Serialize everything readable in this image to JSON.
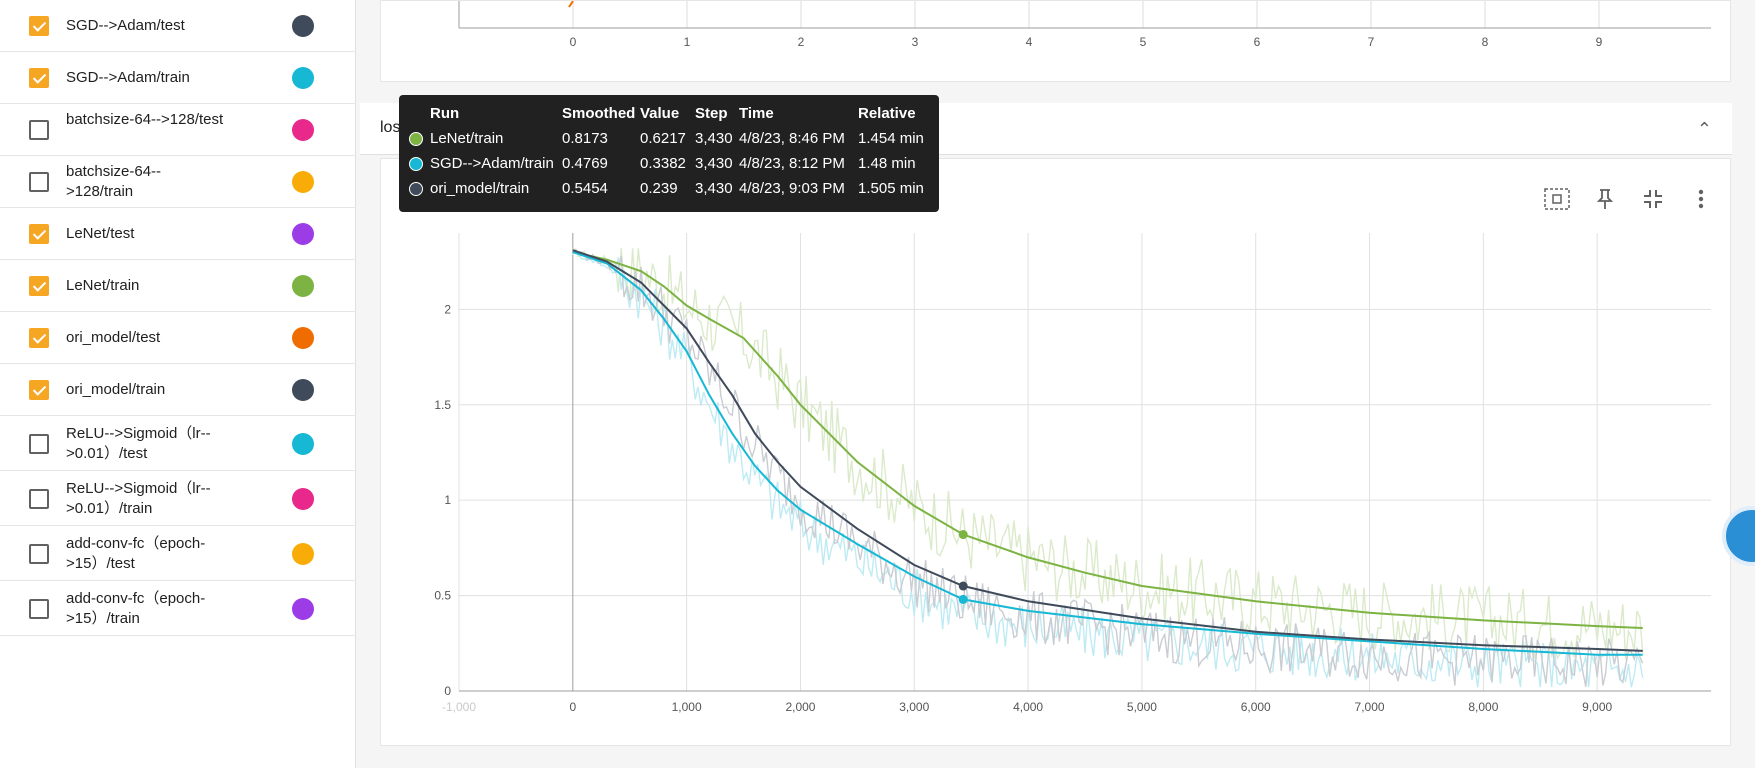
{
  "runs": [
    {
      "label": "SGD-->Adam/test",
      "checked": true,
      "color": "#3f4a5a"
    },
    {
      "label": "SGD-->Adam/train",
      "checked": true,
      "color": "#16b8d4"
    },
    {
      "label": "batchsize-64-->128/test",
      "checked": false,
      "color": "#e8288a"
    },
    {
      "label": "batchsize-64-->128/train",
      "checked": false,
      "color": "#f9ac07"
    },
    {
      "label": "LeNet/test",
      "checked": true,
      "color": "#9b3ce6"
    },
    {
      "label": "LeNet/train",
      "checked": true,
      "color": "#7cb342"
    },
    {
      "label": "ori_model/test",
      "checked": true,
      "color": "#ef6c00"
    },
    {
      "label": "ori_model/train",
      "checked": true,
      "color": "#3f4a5a"
    },
    {
      "label": "ReLU-->Sigmoid（lr-->0.01）/test",
      "checked": false,
      "color": "#16b8d4"
    },
    {
      "label": "ReLU-->Sigmoid（lr-->0.01）/train",
      "checked": false,
      "color": "#e8288a"
    },
    {
      "label": "add-conv-fc（epoch->15）/test",
      "checked": false,
      "color": "#f9ac07"
    },
    {
      "label": "add-conv-fc（epoch->15）/train",
      "checked": false,
      "color": "#9b3ce6"
    }
  ],
  "group": {
    "title": "loss"
  },
  "top_chart": {
    "ticks": [
      "0",
      "1",
      "2",
      "3",
      "4",
      "5",
      "6",
      "7",
      "8",
      "9"
    ]
  },
  "chart_data": {
    "type": "line",
    "title": "loss",
    "xlabel": "",
    "ylabel": "",
    "xlim": [
      -1000,
      10000
    ],
    "ylim": [
      0,
      2.4
    ],
    "x_ticks": [
      "-1,000",
      "0",
      "1,000",
      "2,000",
      "3,000",
      "4,000",
      "5,000",
      "6,000",
      "7,000",
      "8,000",
      "9,000"
    ],
    "y_ticks": [
      "0",
      "0.5",
      "1",
      "1.5",
      "2"
    ],
    "grid": true,
    "series": [
      {
        "name": "LeNet/train",
        "color": "#7cb342",
        "x": [
          0,
          300,
          600,
          800,
          1000,
          1200,
          1500,
          1800,
          2000,
          2500,
          3000,
          3430,
          4000,
          4500,
          5000,
          6000,
          7000,
          8000,
          9000,
          9400
        ],
        "y": [
          2.3,
          2.26,
          2.2,
          2.12,
          2.02,
          1.95,
          1.85,
          1.65,
          1.5,
          1.2,
          0.97,
          0.82,
          0.7,
          0.62,
          0.55,
          0.47,
          0.41,
          0.37,
          0.34,
          0.33
        ]
      },
      {
        "name": "SGD-->Adam/train",
        "color": "#16b8d4",
        "x": [
          0,
          300,
          600,
          800,
          1000,
          1200,
          1400,
          1600,
          1800,
          2000,
          2500,
          3000,
          3430,
          4000,
          5000,
          6000,
          7000,
          8000,
          9000,
          9400
        ],
        "y": [
          2.3,
          2.24,
          2.1,
          1.95,
          1.78,
          1.55,
          1.35,
          1.18,
          1.05,
          0.95,
          0.77,
          0.6,
          0.48,
          0.42,
          0.35,
          0.3,
          0.26,
          0.22,
          0.19,
          0.19
        ]
      },
      {
        "name": "ori_model/train",
        "color": "#3f4a5a",
        "x": [
          0,
          300,
          600,
          800,
          1000,
          1200,
          1400,
          1600,
          1800,
          2000,
          2500,
          3000,
          3430,
          4000,
          5000,
          6000,
          7000,
          8000,
          9000,
          9400
        ],
        "y": [
          2.31,
          2.25,
          2.14,
          2.02,
          1.9,
          1.72,
          1.55,
          1.35,
          1.2,
          1.07,
          0.85,
          0.66,
          0.55,
          0.47,
          0.38,
          0.31,
          0.27,
          0.24,
          0.22,
          0.21
        ]
      }
    ]
  },
  "tooltip": {
    "headers": {
      "run": "Run",
      "smoothed": "Smoothed",
      "value": "Value",
      "step": "Step",
      "time": "Time",
      "relative": "Relative"
    },
    "rows": [
      {
        "run": "LeNet/train",
        "smoothed": "0.8173",
        "value": "0.6217",
        "step": "3,430",
        "time": "4/8/23, 8:46 PM",
        "relative": "1.454 min",
        "color": "#7cb342"
      },
      {
        "run": "SGD-->Adam/train",
        "smoothed": "0.4769",
        "value": "0.3382",
        "step": "3,430",
        "time": "4/8/23, 8:12 PM",
        "relative": "1.48 min",
        "color": "#16b8d4"
      },
      {
        "run": "ori_model/train",
        "smoothed": "0.5454",
        "value": "0.239",
        "step": "3,430",
        "time": "4/8/23, 9:03 PM",
        "relative": "1.505 min",
        "color": "#3f4a5a"
      }
    ]
  },
  "toolbar": {
    "fit_icon": "fit-domain-icon",
    "pin_icon": "pin-icon",
    "collapse_icon": "collapse-icon",
    "more_icon": "more-vert-icon"
  }
}
